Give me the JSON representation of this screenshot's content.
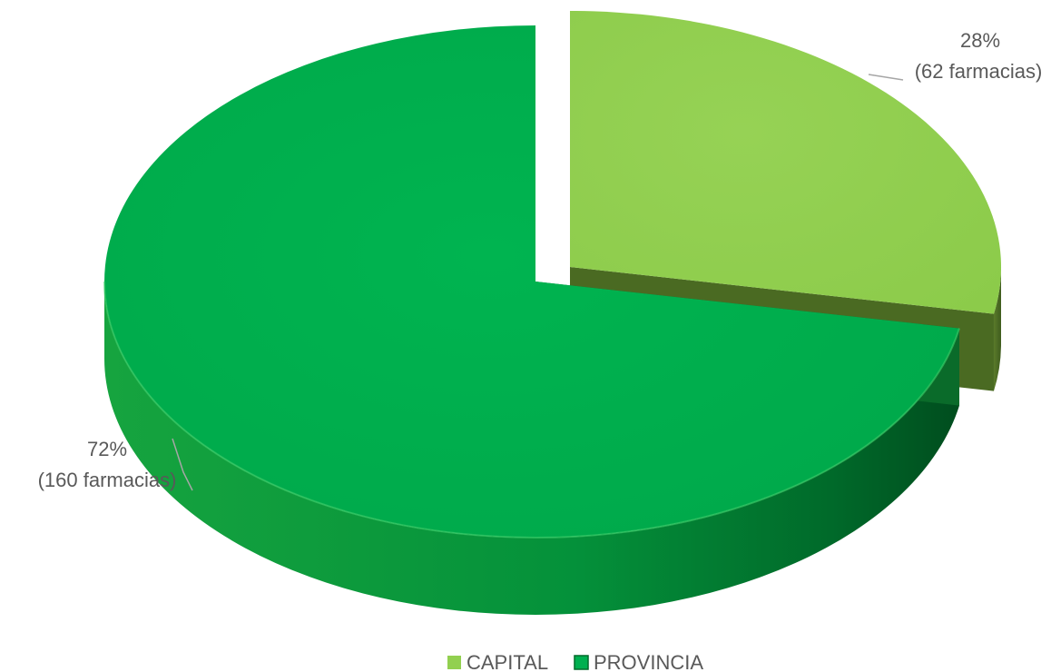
{
  "chart_data": {
    "type": "pie",
    "categories": [
      "CAPITAL",
      "PROVINCIA"
    ],
    "values": [
      62,
      160
    ],
    "percent_labels": [
      "28%",
      "72%"
    ],
    "count_labels": [
      "(62 farmacias)",
      "(160 farmacias)"
    ],
    "colors": {
      "CAPITAL": "#92d050",
      "PROVINCIA": "#00b050"
    },
    "legend_position": "bottom",
    "style": "3d-exploded"
  }
}
